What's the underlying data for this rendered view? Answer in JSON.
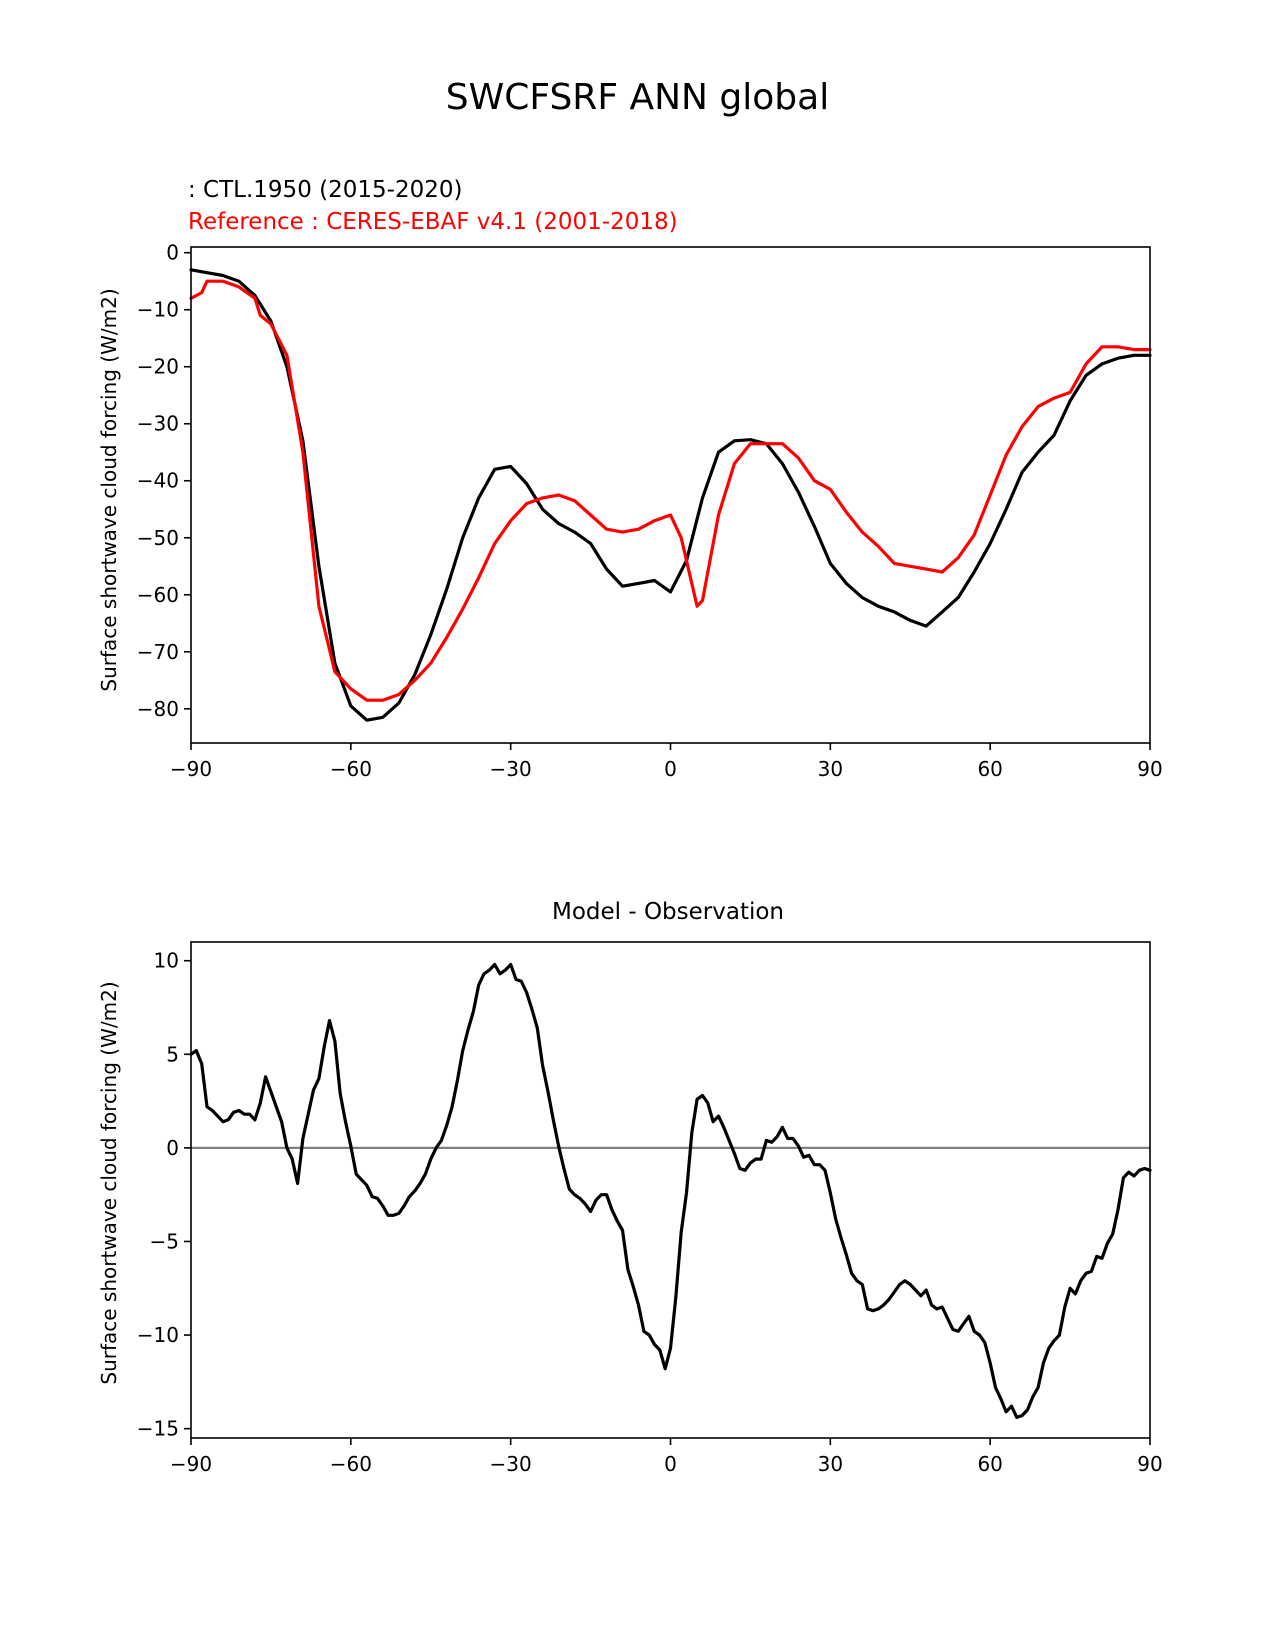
{
  "figure_title": "SWCFSRF ANN global",
  "chart_data": [
    {
      "type": "line",
      "title": "",
      "legend_lines": [
        {
          "text": " : CTL.1950 (2015-2020)",
          "color": "#000000"
        },
        {
          "text": "Reference : CERES-EBAF v4.1 (2001-2018)",
          "color": "#ff0000"
        }
      ],
      "xlabel": "",
      "ylabel": "Surface shortwave cloud forcing (W/m2)",
      "xlim": [
        -90,
        90
      ],
      "ylim": [
        -86,
        1
      ],
      "xticks": [
        -90,
        -60,
        -30,
        0,
        30,
        60,
        90
      ],
      "xtick_labels": [
        "−90",
        "−60",
        "−30",
        "0",
        "30",
        "60",
        "90"
      ],
      "yticks": [
        0,
        -10,
        -20,
        -30,
        -40,
        -50,
        -60,
        -70,
        -80
      ],
      "ytick_labels": [
        "0",
        "−10",
        "−20",
        "−30",
        "−40",
        "−50",
        "−60",
        "−70",
        "−80"
      ],
      "series": [
        {
          "name": "CTL.1950 (2015-2020)",
          "color": "#000000",
          "x": [
            -90,
            -87,
            -84,
            -81,
            -78,
            -75,
            -72,
            -69,
            -66,
            -63,
            -60,
            -57,
            -54,
            -51,
            -48,
            -45,
            -42,
            -39,
            -36,
            -33,
            -30,
            -27,
            -24,
            -21,
            -18,
            -15,
            -12,
            -9,
            -6,
            -3,
            0,
            3,
            6,
            9,
            12,
            15,
            18,
            21,
            24,
            27,
            30,
            33,
            36,
            39,
            42,
            45,
            48,
            51,
            54,
            57,
            60,
            63,
            66,
            69,
            72,
            75,
            78,
            81,
            84,
            87,
            90
          ],
          "values": [
            -3,
            -3.5,
            -4,
            -5,
            -7.5,
            -12,
            -20,
            -33,
            -55,
            -72,
            -79.5,
            -82,
            -81.5,
            -79,
            -74,
            -67,
            -59,
            -50,
            -43,
            -38,
            -37.5,
            -40.5,
            -45,
            -47.5,
            -49,
            -51,
            -55.5,
            -58.5,
            -58,
            -57.5,
            -59.5,
            -54,
            -43,
            -35,
            -33,
            -32.8,
            -33.5,
            -37,
            -42,
            -48,
            -54.5,
            -58,
            -60.5,
            -62,
            -63,
            -64.5,
            -65.5,
            -63,
            -60.5,
            -56,
            -51,
            -45,
            -38.5,
            -35,
            -32,
            -26,
            -21.5,
            -19.5,
            -18.5,
            -18,
            -18
          ]
        },
        {
          "name": "CERES-EBAF v4.1 (2001-2018)",
          "color": "#ff0000",
          "x": [
            -90,
            -88,
            -87,
            -84,
            -81,
            -78,
            -77,
            -75,
            -72,
            -69,
            -66,
            -63,
            -60,
            -57,
            -54,
            -51,
            -48,
            -45,
            -42,
            -39,
            -36,
            -33,
            -30,
            -27,
            -24,
            -21,
            -18,
            -15,
            -12,
            -9,
            -6,
            -3,
            0,
            2,
            4,
            5,
            6,
            9,
            12,
            15,
            18,
            21,
            24,
            27,
            30,
            33,
            36,
            39,
            42,
            45,
            48,
            51,
            54,
            57,
            60,
            63,
            66,
            69,
            72,
            75,
            78,
            81,
            84,
            87,
            90
          ],
          "values": [
            -8,
            -7,
            -5,
            -5,
            -6,
            -8,
            -11,
            -12.5,
            -18,
            -35,
            -62,
            -73.5,
            -76.5,
            -78.5,
            -78.5,
            -77.5,
            -75,
            -72,
            -67.5,
            -62.5,
            -57,
            -51,
            -47,
            -44,
            -43,
            -42.5,
            -43.5,
            -46,
            -48.5,
            -49,
            -48.5,
            -47,
            -46,
            -50,
            -58,
            -62,
            -61,
            -46,
            -37,
            -33.5,
            -33.5,
            -33.5,
            -36,
            -40,
            -41.5,
            -45.5,
            -49,
            -51.5,
            -54.5,
            -55,
            -55.5,
            -56,
            -53.5,
            -49.5,
            -42.5,
            -35.5,
            -30.5,
            -27,
            -25.5,
            -24.5,
            -19.5,
            -16.5,
            -16.5,
            -17,
            -17
          ]
        }
      ]
    },
    {
      "type": "line",
      "title": "Model - Observation",
      "xlabel": "",
      "ylabel": "Surface shortwave cloud forcing (W/m2)",
      "xlim": [
        -90,
        90
      ],
      "ylim": [
        -15.5,
        11
      ],
      "xticks": [
        -90,
        -60,
        -30,
        0,
        30,
        60,
        90
      ],
      "xtick_labels": [
        "−90",
        "−60",
        "−30",
        "0",
        "30",
        "60",
        "90"
      ],
      "yticks": [
        10,
        5,
        0,
        -5,
        -10,
        -15
      ],
      "ytick_labels": [
        "10",
        "5",
        "0",
        "−5",
        "−10",
        "−15"
      ],
      "zero_line": {
        "value": 0,
        "color": "#808080"
      },
      "series": [
        {
          "name": "Model - Observation",
          "color": "#000000",
          "x": [
            -90,
            -89,
            -88,
            -87,
            -86,
            -84,
            -83,
            -82,
            -81,
            -80,
            -79,
            -78,
            -77,
            -76,
            -75,
            -74,
            -73,
            -72,
            -71,
            -70,
            -69,
            -68,
            -67,
            -66,
            -65,
            -64,
            -63,
            -62,
            -61,
            -60,
            -59,
            -58,
            -57,
            -56,
            -55,
            -54,
            -53,
            -52,
            -51,
            -50,
            -49,
            -48,
            -47,
            -46,
            -45,
            -44,
            -43,
            -42,
            -41,
            -40,
            -39,
            -38,
            -37,
            -36,
            -35,
            -34,
            -33,
            -32,
            -31,
            -30,
            -29,
            -28,
            -27,
            -26,
            -25,
            -24,
            -23,
            -22,
            -21,
            -20,
            -19,
            -18,
            -17,
            -16,
            -15,
            -14,
            -13,
            -12,
            -11,
            -10,
            -9,
            -8,
            -7,
            -6,
            -5,
            -4,
            -3,
            -2,
            -1,
            0,
            1,
            2,
            3,
            4,
            5,
            6,
            7,
            8,
            9,
            10,
            11,
            12,
            13,
            14,
            15,
            16,
            17,
            18,
            19,
            20,
            21,
            22,
            23,
            24,
            25,
            26,
            27,
            28,
            29,
            30,
            31,
            32,
            33,
            34,
            35,
            36,
            37,
            38,
            39,
            40,
            41,
            42,
            43,
            44,
            45,
            46,
            47,
            48,
            49,
            50,
            51,
            52,
            53,
            54,
            55,
            56,
            57,
            58,
            59,
            60,
            61,
            62,
            63,
            64,
            65,
            66,
            67,
            68,
            69,
            70,
            71,
            72,
            73,
            74,
            75,
            76,
            77,
            78,
            79,
            80,
            81,
            82,
            83,
            84,
            85,
            86,
            87,
            88,
            89,
            90
          ],
          "values": [
            5.0,
            5.2,
            4.5,
            2.2,
            2.0,
            1.4,
            1.5,
            1.9,
            2.0,
            1.8,
            1.8,
            1.5,
            2.4,
            3.8,
            3.0,
            2.2,
            1.4,
            0.0,
            -0.6,
            -1.9,
            0.5,
            1.8,
            3.1,
            3.7,
            5.4,
            6.8,
            5.7,
            2.9,
            1.4,
            0.1,
            -1.4,
            -1.7,
            -2.0,
            -2.6,
            -2.7,
            -3.1,
            -3.6,
            -3.6,
            -3.5,
            -3.1,
            -2.6,
            -2.3,
            -1.9,
            -1.4,
            -0.6,
            0.0,
            0.4,
            1.2,
            2.2,
            3.6,
            5.2,
            6.3,
            7.3,
            8.7,
            9.3,
            9.5,
            9.8,
            9.3,
            9.5,
            9.8,
            9.0,
            8.9,
            8.3,
            7.4,
            6.4,
            4.4,
            3.0,
            1.5,
            0.1,
            -1.1,
            -2.2,
            -2.5,
            -2.7,
            -3.0,
            -3.4,
            -2.8,
            -2.5,
            -2.5,
            -3.3,
            -3.9,
            -4.4,
            -6.5,
            -7.4,
            -8.4,
            -9.8,
            -10.0,
            -10.5,
            -10.8,
            -11.8,
            -10.7,
            -8.0,
            -4.5,
            -2.4,
            0.8,
            2.6,
            2.8,
            2.4,
            1.4,
            1.7,
            1.1,
            0.4,
            -0.3,
            -1.1,
            -1.2,
            -0.8,
            -0.6,
            -0.6,
            0.4,
            0.3,
            0.6,
            1.1,
            0.5,
            0.5,
            0.1,
            -0.5,
            -0.4,
            -0.9,
            -0.9,
            -1.2,
            -2.4,
            -3.8,
            -4.8,
            -5.7,
            -6.7,
            -7.1,
            -7.3,
            -8.6,
            -8.7,
            -8.6,
            -8.4,
            -8.1,
            -7.7,
            -7.3,
            -7.1,
            -7.3,
            -7.6,
            -7.9,
            -7.6,
            -8.4,
            -8.6,
            -8.5,
            -9.1,
            -9.7,
            -9.8,
            -9.4,
            -9.0,
            -9.8,
            -10.0,
            -10.4,
            -11.5,
            -12.8,
            -13.4,
            -14.1,
            -13.8,
            -14.4,
            -14.3,
            -14.0,
            -13.3,
            -12.8,
            -11.5,
            -10.7,
            -10.3,
            -10.0,
            -8.5,
            -7.5,
            -7.8,
            -7.1,
            -6.7,
            -6.6,
            -5.8,
            -5.9,
            -5.1,
            -4.6,
            -3.3,
            -1.6,
            -1.3,
            -1.5,
            -1.2,
            -1.1,
            -1.2
          ]
        }
      ]
    }
  ]
}
